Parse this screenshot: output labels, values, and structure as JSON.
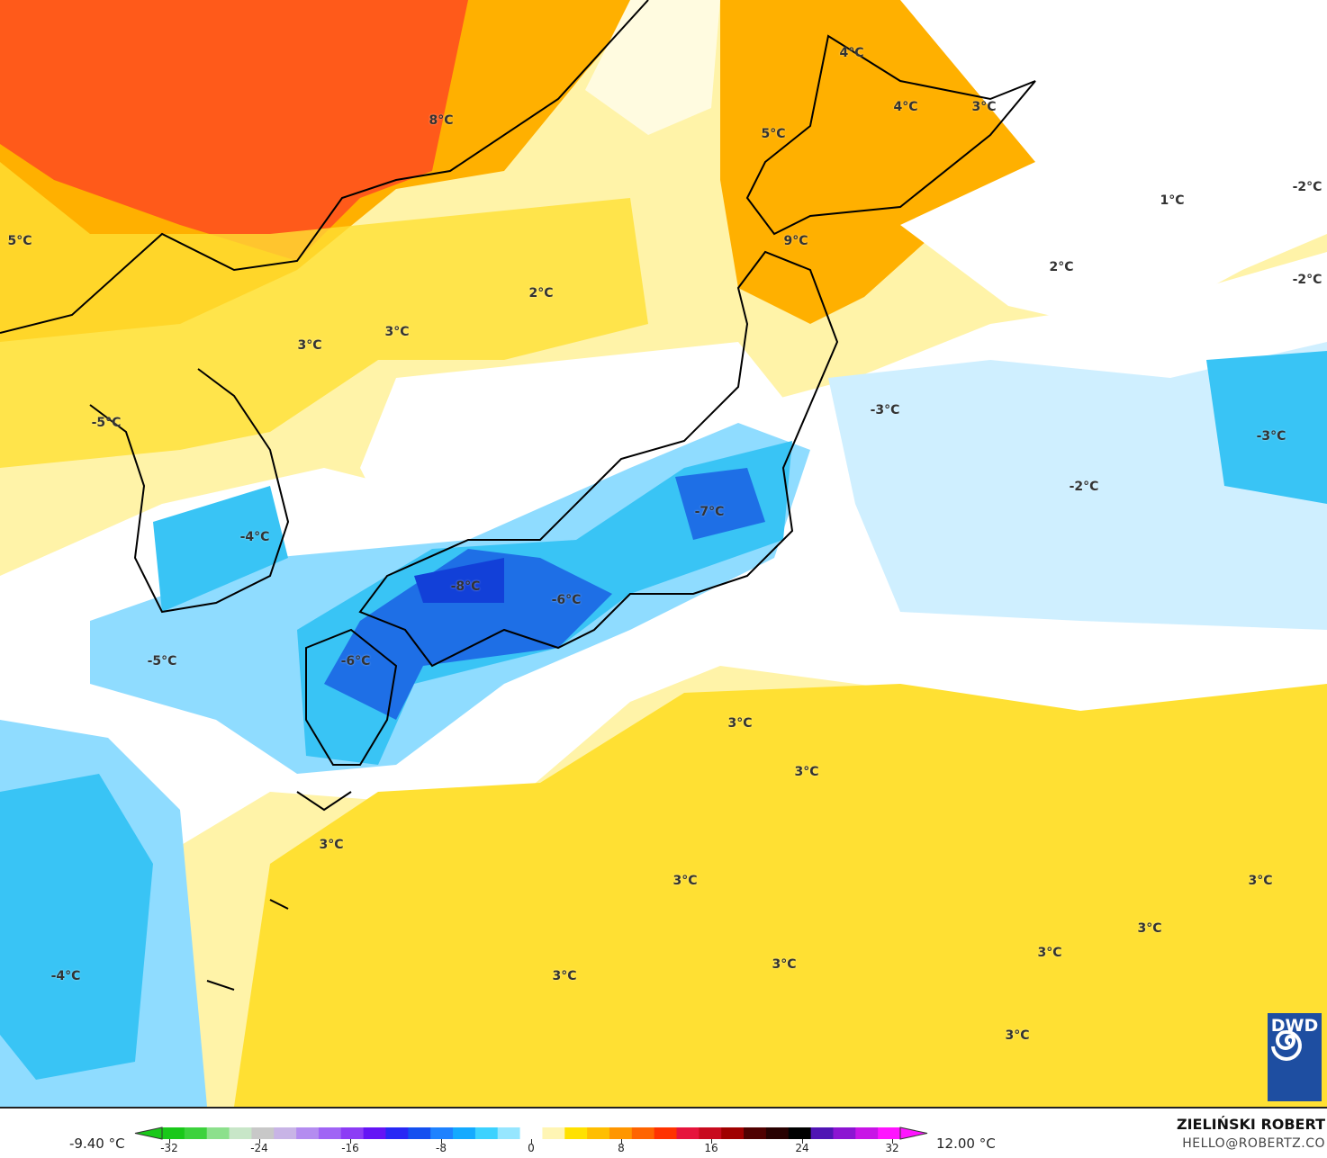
{
  "map": {
    "labels": [
      "8°C",
      "5°C",
      "4°C",
      "4°C",
      "3°C",
      "5°C",
      "9°C",
      "1°C",
      "-2°C",
      "2°C",
      "-2°C",
      "2°C",
      "3°C",
      "3°C",
      "-3°C",
      "-3°C",
      "-2°C",
      "-5°C",
      "-7°C",
      "-4°C",
      "-8°C",
      "-6°C",
      "-5°C",
      "-6°C",
      "3°C",
      "3°C",
      "3°C",
      "3°C",
      "3°C",
      "3°C",
      "3°C",
      "3°C",
      "3°C",
      "-4°C",
      "3°C"
    ],
    "colors": {
      "light_yellow": "#fff3a8",
      "yellow": "#ffe033",
      "orange": "#ffb000",
      "red_orange": "#ff5a1a",
      "white": "#ffffff",
      "pale_blue": "#cfefff",
      "light_blue": "#8fdcff",
      "cyan": "#39c4f5",
      "blue": "#1e6fe6",
      "deep_blue": "#1240d8"
    }
  },
  "logo": {
    "text": "DWD"
  },
  "legend": {
    "min_label": "-9.40 °C",
    "max_label": "12.00 °C",
    "ticks": [
      "-32",
      "-24",
      "-16",
      "-8",
      "0",
      "8",
      "16",
      "24",
      "32"
    ],
    "colors": [
      "#19c819",
      "#3cd23c",
      "#8ce08c",
      "#c8e6c8",
      "#c8c8c8",
      "#c8b4e6",
      "#b48cf0",
      "#a064f5",
      "#8c3cf5",
      "#6414f5",
      "#2828f5",
      "#1450f0",
      "#1e82ff",
      "#14aaff",
      "#3cd2ff",
      "#96e6ff",
      "#ffffff",
      "#fff5b4",
      "#ffe100",
      "#ffbe00",
      "#ff9600",
      "#ff6400",
      "#ff3200",
      "#e6143c",
      "#c80a1e",
      "#a00000",
      "#500000",
      "#280000",
      "#000000",
      "#5014b4",
      "#8c14d2",
      "#c814e6",
      "#ff14ff"
    ]
  },
  "credit": {
    "author": "ZIELIŃSKI ROBERT",
    "email": "HELLO@ROBERTZ.CO"
  }
}
